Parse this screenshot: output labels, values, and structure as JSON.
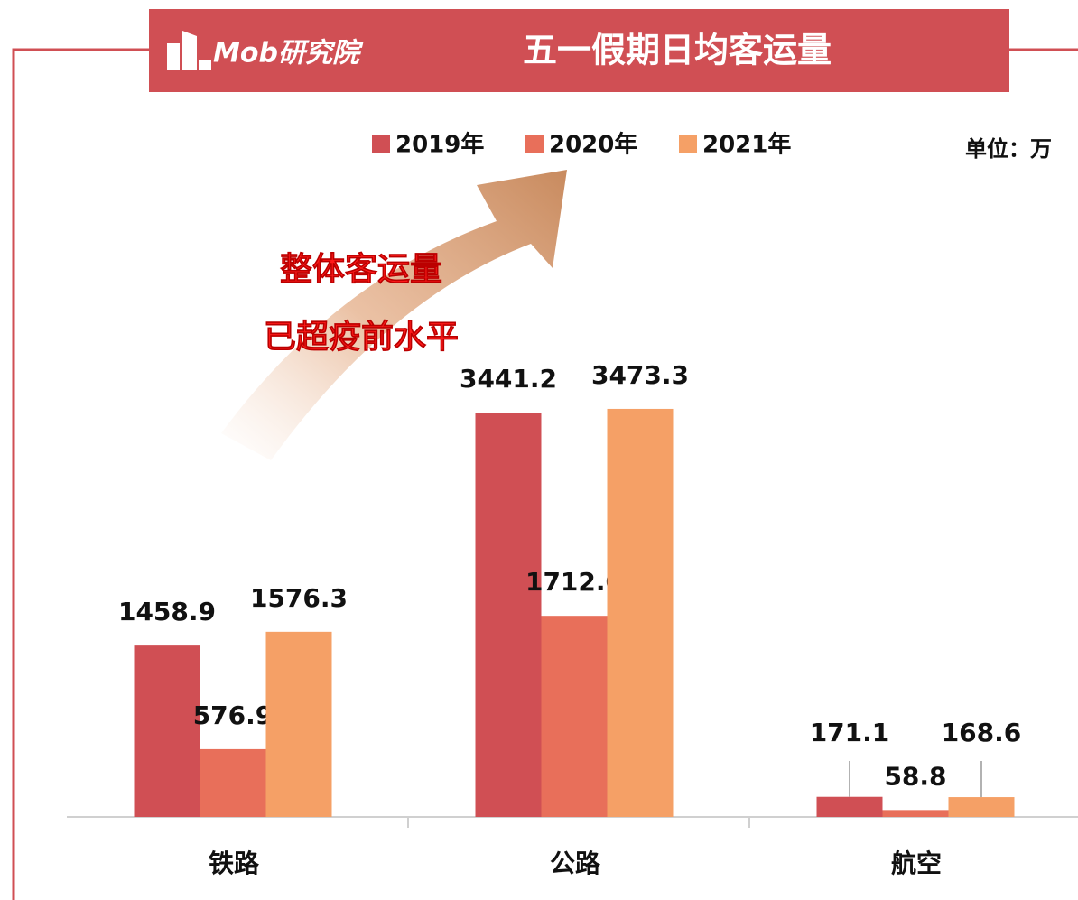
{
  "header": {
    "logo": "Mob研究院"
  },
  "chart_data": {
    "type": "bar",
    "title": "五一假期日均客运量",
    "unit_label": "单位：万",
    "annotations": [
      "整体客运量",
      "已超疫前水平"
    ],
    "categories": [
      "铁路",
      "公路",
      "航空"
    ],
    "series": [
      {
        "name": "2019年",
        "color": "#d04f54",
        "values": [
          1458.9,
          3441.2,
          171.1
        ],
        "value_labels": [
          "1458.9",
          "3441.2",
          "171.1"
        ]
      },
      {
        "name": "2020年",
        "color": "#e86f5a",
        "values": [
          576.9,
          1712.0,
          58.8
        ],
        "value_labels": [
          "576.9",
          "1712.0",
          "58.8"
        ]
      },
      {
        "name": "2021年",
        "color": "#f5a066",
        "values": [
          1576.3,
          3473.3,
          168.6
        ],
        "value_labels": [
          "1576.3",
          "3473.3",
          "168.6"
        ]
      }
    ],
    "ylim": [
      0,
      4000
    ],
    "legend": "top"
  }
}
